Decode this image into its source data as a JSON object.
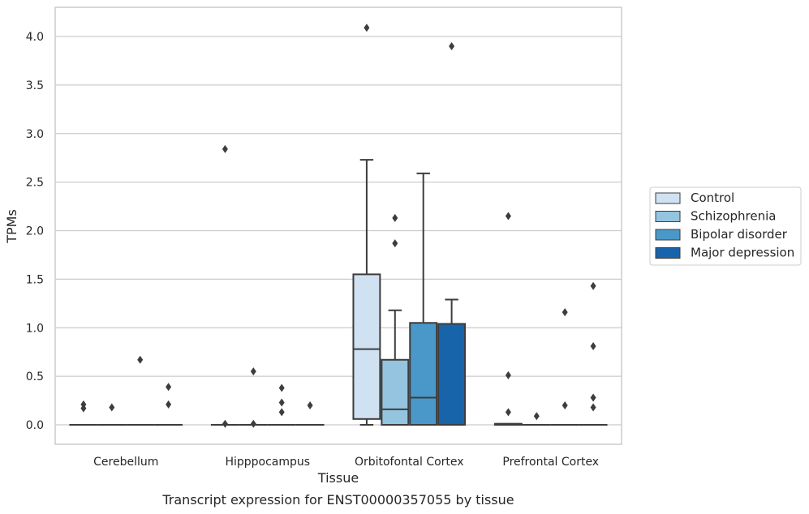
{
  "chart_data": {
    "type": "box",
    "title": "",
    "caption": "Transcript expression for ENST00000357055 by tissue",
    "xlabel": "Tissue",
    "ylabel": "TPMs",
    "categories": [
      "Cerebellum",
      "Hipppocampus",
      "Orbitofontal Cortex",
      "Prefrontal Cortex"
    ],
    "ylim": [
      -0.2,
      4.3
    ],
    "yticks": [
      0.0,
      0.5,
      1.0,
      1.5,
      2.0,
      2.5,
      3.0,
      3.5,
      4.0
    ],
    "ytick_labels": [
      "0.0",
      "0.5",
      "1.0",
      "1.5",
      "2.0",
      "2.5",
      "3.0",
      "3.5",
      "4.0"
    ],
    "grid": true,
    "legend_position": "right",
    "series": [
      {
        "name": "Control",
        "color": "#d0e1f2",
        "boxes": [
          {
            "q1": 0,
            "median": 0,
            "q3": 0,
            "whisker_low": 0,
            "whisker_high": 0,
            "outliers": [
              0.21,
              0.17
            ]
          },
          {
            "q1": 0,
            "median": 0,
            "q3": 0,
            "whisker_low": 0,
            "whisker_high": 0,
            "outliers": [
              2.84,
              0.01
            ]
          },
          {
            "q1": 0.06,
            "median": 0.78,
            "q3": 1.55,
            "whisker_low": 0,
            "whisker_high": 2.73,
            "outliers": [
              4.09
            ]
          },
          {
            "q1": 0,
            "median": 0.01,
            "q3": 0.01,
            "whisker_low": 0,
            "whisker_high": 0.01,
            "outliers": [
              2.15,
              0.51,
              0.13
            ]
          }
        ]
      },
      {
        "name": "Schizophrenia",
        "color": "#94c4df",
        "boxes": [
          {
            "q1": 0,
            "median": 0,
            "q3": 0,
            "whisker_low": 0,
            "whisker_high": 0,
            "outliers": [
              0.18
            ]
          },
          {
            "q1": 0,
            "median": 0,
            "q3": 0,
            "whisker_low": 0,
            "whisker_high": 0,
            "outliers": [
              0.55,
              0.01
            ]
          },
          {
            "q1": 0,
            "median": 0.16,
            "q3": 0.67,
            "whisker_low": 0,
            "whisker_high": 1.18,
            "outliers": [
              2.13,
              1.87
            ]
          },
          {
            "q1": 0,
            "median": 0,
            "q3": 0,
            "whisker_low": 0,
            "whisker_high": 0,
            "outliers": [
              0.09
            ]
          }
        ]
      },
      {
        "name": "Bipolar disorder",
        "color": "#4a98c9",
        "boxes": [
          {
            "q1": 0,
            "median": 0,
            "q3": 0,
            "whisker_low": 0,
            "whisker_high": 0,
            "outliers": [
              0.67
            ]
          },
          {
            "q1": 0,
            "median": 0,
            "q3": 0,
            "whisker_low": 0,
            "whisker_high": 0,
            "outliers": [
              0.38,
              0.23,
              0.13
            ]
          },
          {
            "q1": 0,
            "median": 0.28,
            "q3": 1.05,
            "whisker_low": 0,
            "whisker_high": 2.59,
            "outliers": []
          },
          {
            "q1": 0,
            "median": 0,
            "q3": 0,
            "whisker_low": 0,
            "whisker_high": 0,
            "outliers": [
              1.16,
              0.2
            ]
          }
        ]
      },
      {
        "name": "Major depression",
        "color": "#1764ab",
        "boxes": [
          {
            "q1": 0,
            "median": 0,
            "q3": 0,
            "whisker_low": 0,
            "whisker_high": 0,
            "outliers": [
              0.39,
              0.21
            ]
          },
          {
            "q1": 0,
            "median": 0,
            "q3": 0,
            "whisker_low": 0,
            "whisker_high": 0,
            "outliers": [
              0.2
            ]
          },
          {
            "q1": 0,
            "median": 1.04,
            "q3": 1.04,
            "whisker_low": 0,
            "whisker_high": 1.29,
            "outliers": [
              3.9
            ]
          },
          {
            "q1": 0,
            "median": 0,
            "q3": 0,
            "whisker_low": 0,
            "whisker_high": 0,
            "outliers": [
              1.43,
              0.81,
              0.28,
              0.18
            ]
          }
        ]
      }
    ]
  }
}
